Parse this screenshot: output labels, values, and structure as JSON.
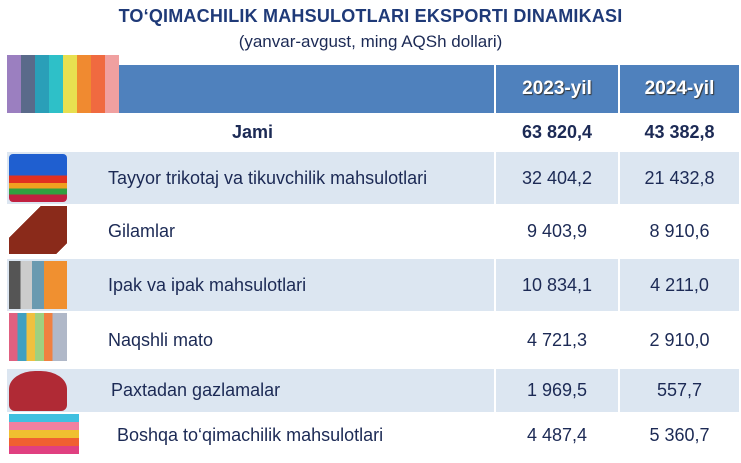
{
  "title": "TO‘QIMACHILIK MAHSULOTLARI EKSPORTI DINAMIKASI",
  "subtitle": "(yanvar-avgust, ming AQSh dollari)",
  "columns": [
    "2023-yil",
    "2024-yil"
  ],
  "total": {
    "label": "Jami",
    "v2023": "63 820,4",
    "v2024": "43 382,8"
  },
  "rows": [
    {
      "label": "Tayyor trikotaj va tikuvchilik mahsulotlari",
      "v2023": "32 404,2",
      "v2024": "21 432,8",
      "icon": "folded-shirts-icon"
    },
    {
      "label": "Gilamlar",
      "v2023": "9 403,9",
      "v2024": "8 910,6",
      "icon": "carpet-icon"
    },
    {
      "label": "Ipak va ipak mahsulotlari",
      "v2023": "10 834,1",
      "v2024": "4 211,0",
      "icon": "silk-rolls-icon"
    },
    {
      "label": "Naqshli mato",
      "v2023": "4 721,3",
      "v2024": "2 910,0",
      "icon": "patterned-fabric-icon"
    },
    {
      "label": "Paxtadan gazlamalar",
      "v2023": "1 969,5",
      "v2024": "557,7",
      "icon": "yarn-cone-icon"
    },
    {
      "label": "Boshqa to‘qimachilik mahsulotlari",
      "v2023": "4 487,4",
      "v2024": "5 360,7",
      "icon": "fabric-stack-icon"
    }
  ],
  "colors": {
    "header": "#4f81bd",
    "stripe": "#dce6f1",
    "title": "#1f3a78"
  }
}
